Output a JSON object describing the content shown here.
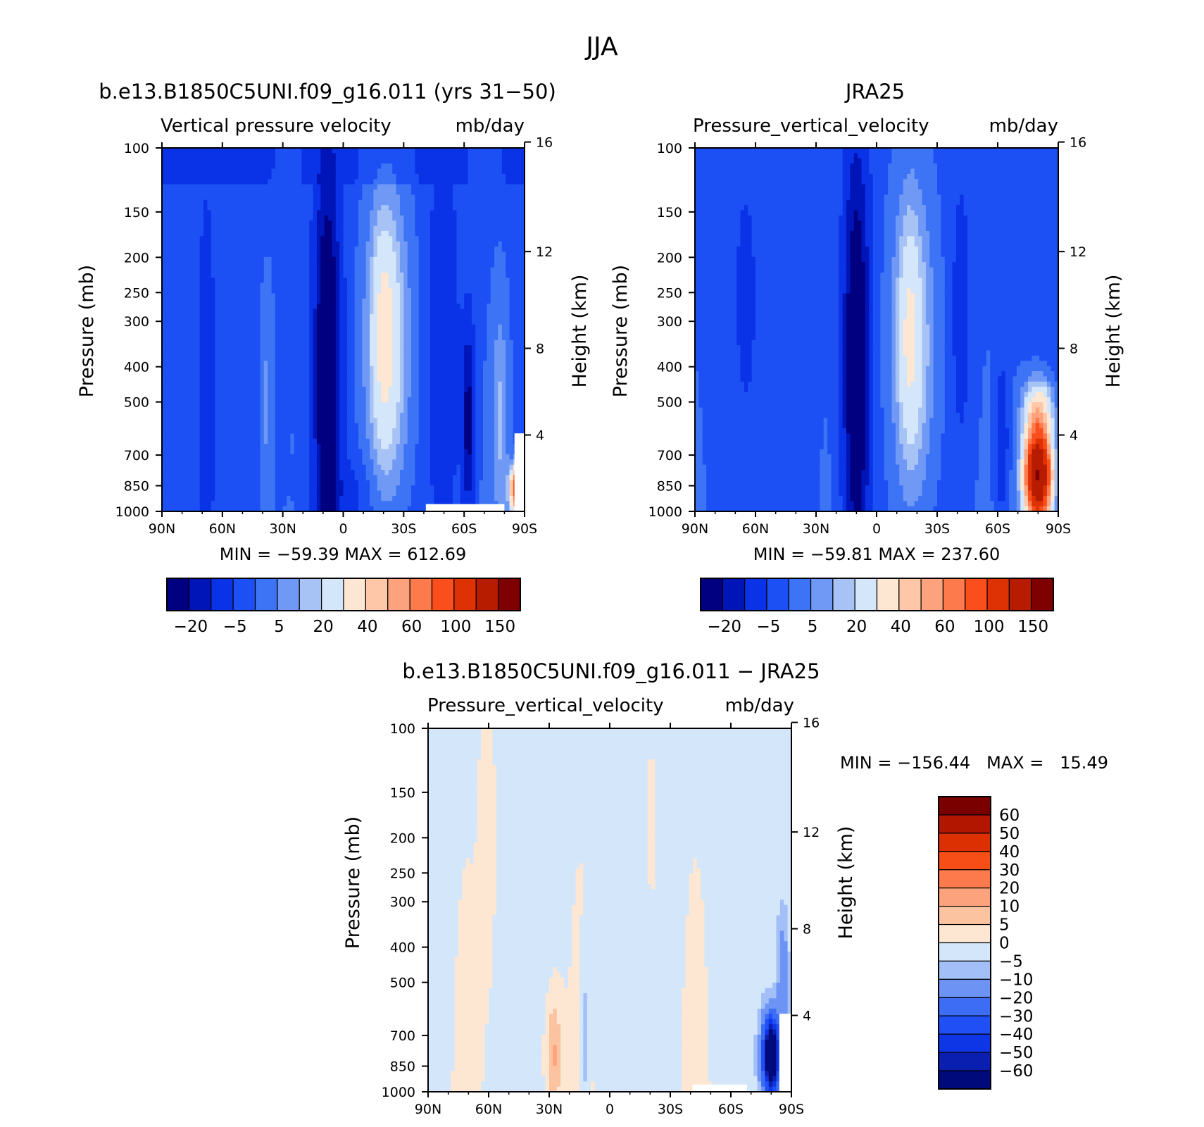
{
  "page_title": "JJA",
  "colors": {
    "model_obs_palette": [
      "#000080",
      "#0015b8",
      "#0a32e6",
      "#1c50f5",
      "#3c74f5",
      "#7099f5",
      "#a7c2f5",
      "#d4e6fa",
      "#fde7d3",
      "#fdc7a8",
      "#fca27d",
      "#fc7a4c",
      "#fa4f1c",
      "#df3204",
      "#b71c00",
      "#7e0000"
    ],
    "diff_palette": [
      "#000a7a",
      "#0a1fb0",
      "#0f36e6",
      "#2050f5",
      "#3d6cf5",
      "#6d93f5",
      "#a3bff7",
      "#d4e6fa",
      "#fde7d3",
      "#fcc3a0",
      "#fca27d",
      "#fc7a4c",
      "#f64e16",
      "#dc3002",
      "#b21500",
      "#7a0000"
    ]
  },
  "chart_data": [
    {
      "type": "heatmap",
      "title": "b.e13.B1850C5UNI.f09_g16.011 (yrs 31−50)",
      "subtitle_left": "Vertical pressure velocity",
      "subtitle_right": "mb/day",
      "ylabel": "Pressure (mb)",
      "ylabel2": "Height (km)",
      "x_ticks": [
        "90N",
        "60N",
        "30N",
        "0",
        "30S",
        "60S",
        "90S"
      ],
      "y_ticks": [
        "100",
        "150",
        "200",
        "250",
        "300",
        "400",
        "500",
        "700",
        "850",
        "1000"
      ],
      "y2_ticks": [
        "16",
        "12",
        "8",
        "4"
      ],
      "xlim": [
        90,
        -90
      ],
      "ylim": [
        1000,
        100
      ],
      "min_max": "MIN = −59.39   MAX = 612.69",
      "colorbar_labels": [
        "−20",
        "−5",
        "5",
        "20",
        "40",
        "60",
        "100",
        "150"
      ]
    },
    {
      "type": "heatmap",
      "title": "JRA25",
      "subtitle_left": "Pressure_vertical_velocity",
      "subtitle_right": "mb/day",
      "ylabel": "Pressure (mb)",
      "ylabel2": "Height (km)",
      "x_ticks": [
        "90N",
        "60N",
        "30N",
        "0",
        "30S",
        "60S",
        "90S"
      ],
      "y_ticks": [
        "100",
        "150",
        "200",
        "250",
        "300",
        "400",
        "500",
        "700",
        "850",
        "1000"
      ],
      "y2_ticks": [
        "16",
        "12",
        "8",
        "4"
      ],
      "xlim": [
        90,
        -90
      ],
      "ylim": [
        1000,
        100
      ],
      "min_max": "MIN = −59.81   MAX = 237.60",
      "colorbar_labels": [
        "−20",
        "−5",
        "5",
        "20",
        "40",
        "60",
        "100",
        "150"
      ]
    },
    {
      "type": "heatmap",
      "title": "b.e13.B1850C5UNI.f09_g16.011 − JRA25",
      "subtitle_left": "Pressure_vertical_velocity",
      "subtitle_right": "mb/day",
      "ylabel": "Pressure (mb)",
      "ylabel2": "Height (km)",
      "x_ticks": [
        "90N",
        "60N",
        "30N",
        "0",
        "30S",
        "60S",
        "90S"
      ],
      "y_ticks": [
        "100",
        "150",
        "200",
        "250",
        "300",
        "400",
        "500",
        "700",
        "850",
        "1000"
      ],
      "y2_ticks": [
        "16",
        "12",
        "8",
        "4"
      ],
      "xlim": [
        90,
        -90
      ],
      "ylim": [
        1000,
        100
      ],
      "min_max": "MIN = −156.44   MAX =   15.49",
      "colorbar_labels": [
        "60",
        "50",
        "40",
        "30",
        "20",
        "10",
        "5",
        "0",
        "−5",
        "−10",
        "−20",
        "−30",
        "−40",
        "−50",
        "−60"
      ]
    }
  ]
}
